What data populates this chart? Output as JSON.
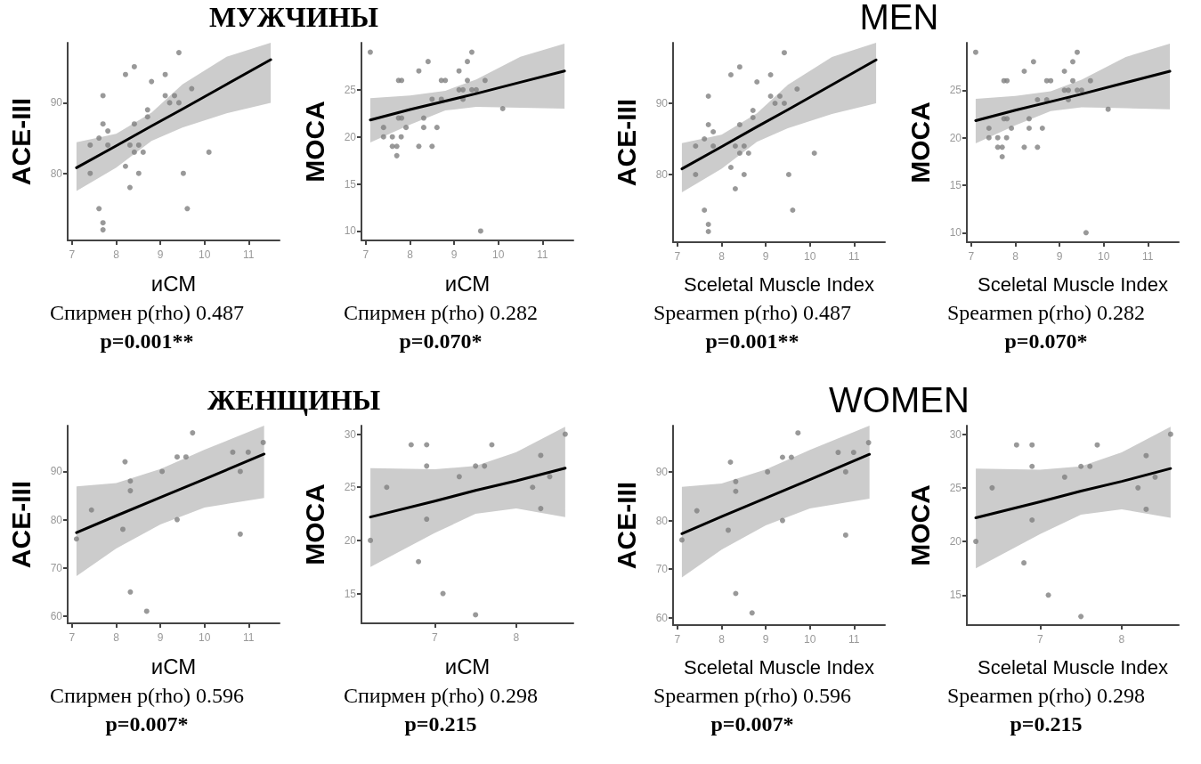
{
  "chart_data": [
    {
      "type": "scatter",
      "title": "МУЖЧИНЫ",
      "xlabel": "иСМ",
      "ylabel": "ACE-III",
      "annotations": [
        "Спирмен p(rho) 0.487",
        "p=0.001**"
      ],
      "xlim": [
        6.9,
        11.7
      ],
      "ylim": [
        70.5,
        98.5
      ],
      "xticks": [
        7,
        8,
        9,
        10,
        11
      ],
      "yticks": [
        80,
        90
      ],
      "line_style": "solid",
      "series": [
        {
          "type": "scatter",
          "marker": "circle",
          "color": "#808080",
          "x": [
            9.42,
            8.41,
            8.21,
            9.11,
            8.8,
            7.7,
            9.11,
            9.32,
            9.71,
            9.21,
            9.42,
            8.71,
            8.71,
            7.7,
            8.41,
            7.81,
            7.61,
            7.41,
            7.81,
            8.31,
            8.51,
            8.41,
            8.61,
            10.1,
            8.21,
            7.41,
            8.51,
            9.52,
            8.31,
            7.61,
            9.61,
            7.7,
            7.7
          ],
          "values": [
            97.1,
            95.1,
            94,
            94,
            93,
            91,
            91,
            91,
            92,
            90,
            90,
            89,
            88,
            87,
            87,
            86,
            85,
            84,
            84,
            84,
            84,
            83,
            83,
            83,
            81,
            80,
            80,
            80,
            78,
            75,
            75,
            73,
            72
          ]
        },
        {
          "type": "line",
          "marker": "none",
          "color": "#000000",
          "x": [
            7.1,
            8,
            8.8,
            9.5,
            10.5,
            11.5
          ],
          "values": [
            80.8,
            83.9,
            86.7,
            89.1,
            92.6,
            96.1
          ],
          "lower": [
            77.5,
            80.8,
            84.6,
            86.5,
            88.5,
            90
          ],
          "upper": [
            84.4,
            85.6,
            88.6,
            92.6,
            96.5,
            98.5
          ]
        }
      ]
    },
    {
      "type": "scatter",
      "xlabel": "иСМ",
      "ylabel": "MOCA",
      "annotations": [
        "Спирмен p(rho) 0.282",
        "p=0.070*"
      ],
      "xlim": [
        6.9,
        11.7
      ],
      "ylim": [
        9,
        30
      ],
      "xticks": [
        7,
        8,
        9,
        10,
        11
      ],
      "yticks": [
        10,
        15,
        20,
        25
      ],
      "line_style": "solid",
      "series": [
        {
          "type": "scatter",
          "marker": "circle",
          "color": "#808080",
          "x": [
            7.1,
            8.2,
            8.41,
            9.11,
            9.4,
            9.3,
            7.74,
            7.81,
            8.71,
            8.8,
            9.3,
            9.7,
            9.11,
            9.2,
            9.4,
            9.5,
            8.5,
            8.71,
            9.2,
            8.31,
            7.74,
            7.81,
            7.4,
            7.91,
            8.31,
            8.61,
            7.4,
            7.6,
            7.8,
            7.6,
            7.7,
            8.2,
            8.5,
            7.7,
            9.6,
            10.1
          ],
          "values": [
            29,
            27,
            28,
            27,
            29,
            28,
            26,
            26,
            26,
            26,
            26,
            26,
            25,
            25,
            25,
            25,
            24,
            24,
            24,
            22,
            22,
            22,
            21,
            21,
            21,
            21,
            20,
            20,
            20,
            19,
            19,
            19,
            19,
            18,
            10,
            23
          ]
        },
        {
          "type": "line",
          "marker": "none",
          "color": "#000000",
          "x": [
            7.1,
            8,
            8.8,
            9.5,
            10.5,
            11.5
          ],
          "values": [
            21.8,
            22.9,
            23.8,
            24.6,
            25.8,
            27
          ],
          "lower": [
            19.4,
            21.3,
            22.8,
            23.2,
            23.1,
            23
          ],
          "upper": [
            24.1,
            24.4,
            24.9,
            26.1,
            28.5,
            29.9
          ]
        }
      ]
    },
    {
      "type": "scatter",
      "title": "MEN",
      "xlabel": "Sceletal Muscle Index",
      "ylabel": "ACE-III",
      "annotations": [
        "Spearmen p(rho) 0.487",
        "p=0.001**"
      ],
      "xlim": [
        6.9,
        11.7
      ],
      "ylim": [
        70.5,
        98.5
      ],
      "xticks": [
        7,
        8,
        9,
        10,
        11
      ],
      "yticks": [
        80,
        90
      ],
      "line_style": "solid",
      "series": [
        {
          "type": "scatter",
          "marker": "circle",
          "color": "#808080",
          "x": [
            9.42,
            8.41,
            8.21,
            9.11,
            8.8,
            7.7,
            9.11,
            9.32,
            9.71,
            9.21,
            9.42,
            8.71,
            8.71,
            7.7,
            8.41,
            7.81,
            7.61,
            7.41,
            7.81,
            8.31,
            8.51,
            8.41,
            8.61,
            10.1,
            8.21,
            7.41,
            8.51,
            9.52,
            8.31,
            7.61,
            9.61,
            7.7,
            7.7
          ],
          "values": [
            97.1,
            95.1,
            94,
            94,
            93,
            91,
            91,
            91,
            92,
            90,
            90,
            89,
            88,
            87,
            87,
            86,
            85,
            84,
            84,
            84,
            84,
            83,
            83,
            83,
            81,
            80,
            80,
            80,
            78,
            75,
            75,
            73,
            72
          ]
        },
        {
          "type": "line",
          "marker": "none",
          "color": "#000000",
          "x": [
            7.1,
            8,
            8.8,
            9.5,
            10.5,
            11.5
          ],
          "values": [
            80.8,
            83.9,
            86.7,
            89.1,
            92.6,
            96.1
          ],
          "lower": [
            77.5,
            80.8,
            84.6,
            86.5,
            88.5,
            90
          ],
          "upper": [
            84.4,
            85.6,
            88.6,
            92.6,
            96.5,
            98.5
          ]
        }
      ]
    },
    {
      "type": "scatter",
      "xlabel": "Sceletal Muscle Index",
      "ylabel": "MOCA",
      "annotations": [
        "Spearmen p(rho) 0.282",
        "p=0.070*"
      ],
      "xlim": [
        6.9,
        11.7
      ],
      "ylim": [
        9,
        30
      ],
      "xticks": [
        7,
        8,
        9,
        10,
        11
      ],
      "yticks": [
        10,
        15,
        20,
        25
      ],
      "line_style": "solid",
      "series": [
        {
          "type": "scatter",
          "marker": "circle",
          "color": "#808080",
          "x": [
            7.1,
            8.2,
            8.41,
            9.11,
            9.4,
            9.3,
            7.74,
            7.81,
            8.71,
            8.8,
            9.3,
            9.7,
            9.11,
            9.2,
            9.4,
            9.5,
            8.5,
            8.71,
            9.2,
            8.31,
            7.74,
            7.81,
            7.4,
            7.91,
            8.31,
            8.61,
            7.4,
            7.6,
            7.8,
            7.6,
            7.7,
            8.2,
            8.5,
            7.7,
            9.6,
            10.1
          ],
          "values": [
            29,
            27,
            28,
            27,
            29,
            28,
            26,
            26,
            26,
            26,
            26,
            26,
            25,
            25,
            25,
            25,
            24,
            24,
            24,
            22,
            22,
            22,
            21,
            21,
            21,
            21,
            20,
            20,
            20,
            19,
            19,
            19,
            19,
            18,
            10,
            23
          ]
        },
        {
          "type": "line",
          "marker": "none",
          "color": "#000000",
          "x": [
            7.1,
            8,
            8.8,
            9.5,
            10.5,
            11.5
          ],
          "values": [
            21.8,
            22.9,
            23.8,
            24.6,
            25.8,
            27
          ],
          "lower": [
            19.4,
            21.3,
            22.8,
            23.2,
            23.1,
            23
          ],
          "upper": [
            24.1,
            24.4,
            24.9,
            26.1,
            28.5,
            29.9
          ]
        }
      ]
    },
    {
      "type": "scatter",
      "title": "ЖЕНЩИНЫ",
      "xlabel": "иСМ",
      "ylabel": "ACE-III",
      "annotations": [
        "Спирмен p(rho) 0.596",
        "p=0.007*"
      ],
      "xlim": [
        6.9,
        11.7
      ],
      "ylim": [
        58.5,
        99.5
      ],
      "xticks": [
        7,
        8,
        9,
        10,
        11
      ],
      "yticks": [
        60,
        70,
        80,
        90
      ],
      "line_style": "solid",
      "series": [
        {
          "type": "scatter",
          "marker": "circle",
          "color": "#808080",
          "x": [
            7.1,
            7.44,
            8.2,
            8.32,
            8.32,
            8.15,
            8.32,
            8.69,
            9.04,
            9.38,
            9.58,
            9.73,
            9.38,
            10.64,
            10.99,
            10.81,
            10.81,
            11.33
          ],
          "values": [
            76,
            82,
            92,
            88,
            86,
            78,
            65,
            61,
            90,
            93,
            93,
            98,
            80,
            94,
            94,
            90,
            77,
            96
          ]
        },
        {
          "type": "line",
          "marker": "none",
          "color": "#000000",
          "x": [
            7.1,
            8,
            9,
            10,
            11.35
          ],
          "values": [
            77.3,
            80.8,
            84.6,
            88.4,
            93.6
          ],
          "lower": [
            68.3,
            74,
            79,
            82.5,
            84.5
          ],
          "upper": [
            86.9,
            87.6,
            90.5,
            94.5,
            99.5
          ]
        }
      ]
    },
    {
      "type": "scatter",
      "xlabel": "иСМ",
      "ylabel": "MOCA",
      "annotations": [
        "Спирмен p(rho) 0.298",
        "p=0.215"
      ],
      "xlim": [
        6.1,
        8.7
      ],
      "ylim": [
        12.2,
        30.8
      ],
      "xticks": [
        7,
        8
      ],
      "yticks": [
        15,
        20,
        25,
        30
      ],
      "line_style": "solid",
      "series": [
        {
          "type": "scatter",
          "marker": "circle",
          "color": "#808080",
          "x": [
            6.21,
            6.41,
            6.71,
            6.9,
            6.9,
            6.9,
            6.8,
            7.1,
            7.3,
            7.5,
            7.61,
            7.7,
            7.5,
            8.2,
            8.3,
            8.3,
            8.41,
            8.6
          ],
          "values": [
            20,
            25,
            29,
            29,
            27,
            22,
            18,
            15,
            26,
            27,
            27,
            29,
            13,
            25,
            28,
            23,
            26,
            30
          ]
        },
        {
          "type": "line",
          "marker": "none",
          "color": "#000000",
          "x": [
            6.21,
            7,
            7.5,
            8,
            8.6
          ],
          "values": [
            22.2,
            23.7,
            24.7,
            25.6,
            26.8
          ],
          "lower": [
            17.5,
            20.7,
            22.5,
            23,
            22.2
          ],
          "upper": [
            26.8,
            26.7,
            27,
            28.3,
            30.7
          ]
        }
      ]
    },
    {
      "type": "scatter",
      "title": "WOMEN",
      "xlabel": "Sceletal Muscle Index",
      "ylabel": "ACE-III",
      "annotations": [
        "Spearmen p(rho) 0.596",
        "p=0.007*"
      ],
      "xlim": [
        6.9,
        11.7
      ],
      "ylim": [
        58.5,
        99.5
      ],
      "xticks": [
        7,
        8,
        9,
        10,
        11
      ],
      "yticks": [
        60,
        70,
        80,
        90
      ],
      "line_style": "solid",
      "series": [
        {
          "type": "scatter",
          "marker": "circle",
          "color": "#808080",
          "x": [
            7.1,
            7.44,
            8.2,
            8.32,
            8.32,
            8.15,
            8.32,
            8.69,
            9.04,
            9.38,
            9.58,
            9.73,
            9.38,
            10.64,
            10.99,
            10.81,
            10.81,
            11.33
          ],
          "values": [
            76,
            82,
            92,
            88,
            86,
            78,
            65,
            61,
            90,
            93,
            93,
            98,
            80,
            94,
            94,
            90,
            77,
            96
          ]
        },
        {
          "type": "line",
          "marker": "none",
          "color": "#000000",
          "x": [
            7.1,
            8,
            9,
            10,
            11.35
          ],
          "values": [
            77.3,
            80.8,
            84.6,
            88.4,
            93.6
          ],
          "lower": [
            68.3,
            74,
            79,
            82.5,
            84.5
          ],
          "upper": [
            86.9,
            87.6,
            90.5,
            94.5,
            99.5
          ]
        }
      ]
    },
    {
      "type": "scatter",
      "xlabel": "Sceletal Muscle Index",
      "ylabel": "MOCA",
      "annotations": [
        "Spearmen p(rho) 0.298",
        "p=0.215"
      ],
      "xlim": [
        6.1,
        8.7
      ],
      "ylim": [
        12.2,
        30.8
      ],
      "xticks": [
        7,
        8
      ],
      "yticks": [
        15,
        20,
        25,
        30
      ],
      "line_style": "solid",
      "series": [
        {
          "type": "scatter",
          "marker": "circle",
          "color": "#808080",
          "x": [
            6.21,
            6.41,
            6.71,
            6.9,
            6.9,
            6.9,
            6.8,
            7.1,
            7.3,
            7.5,
            7.61,
            7.7,
            7.5,
            8.2,
            8.3,
            8.3,
            8.41,
            8.6
          ],
          "values": [
            20,
            25,
            29,
            29,
            27,
            22,
            18,
            15,
            26,
            27,
            27,
            29,
            13,
            25,
            28,
            23,
            26,
            30
          ]
        },
        {
          "type": "line",
          "marker": "none",
          "color": "#000000",
          "x": [
            6.21,
            7,
            7.5,
            8,
            8.6
          ],
          "values": [
            22.2,
            23.7,
            24.7,
            25.6,
            26.8
          ],
          "lower": [
            17.5,
            20.7,
            22.5,
            23,
            22.2
          ],
          "upper": [
            26.8,
            26.7,
            27,
            28.3,
            30.7
          ]
        }
      ]
    }
  ]
}
